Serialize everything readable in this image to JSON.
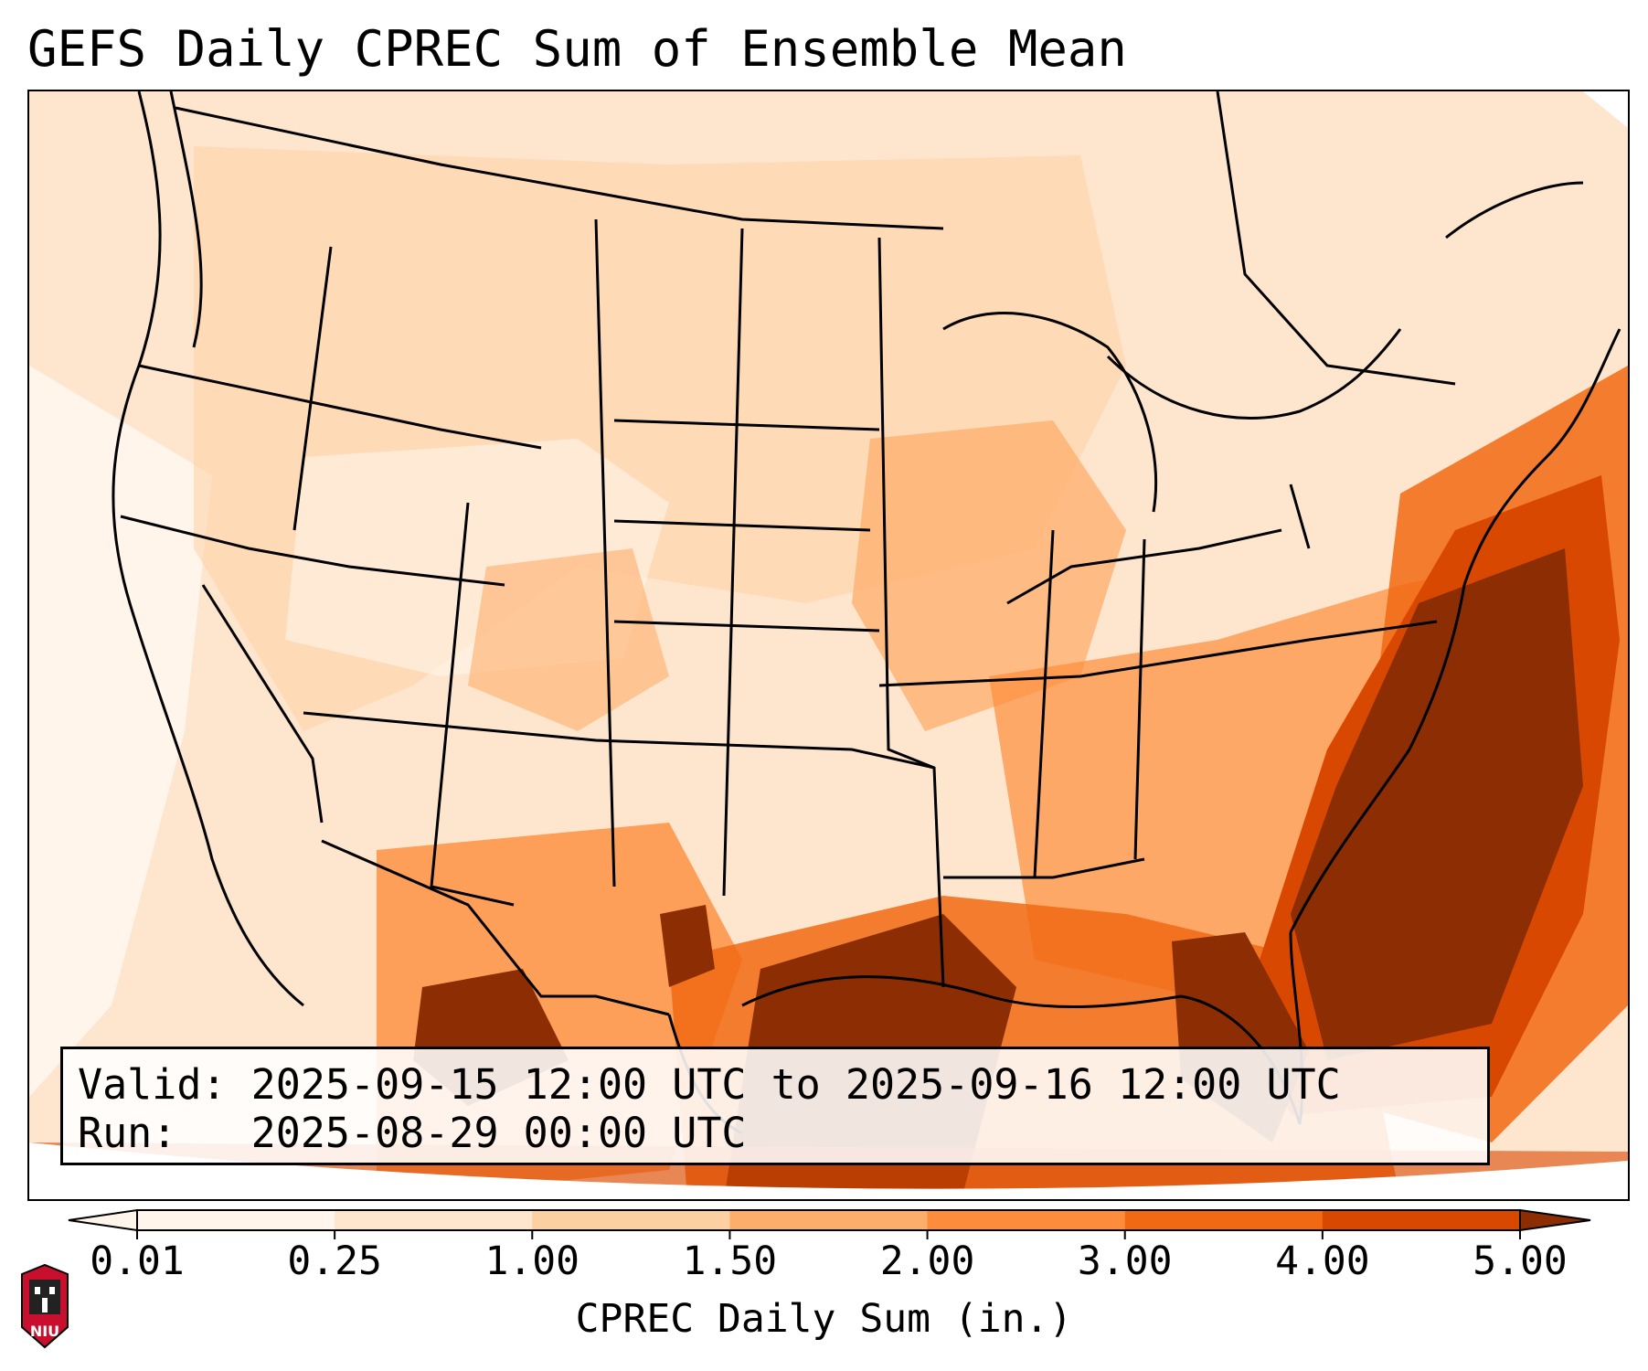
{
  "title": "GEFS Daily CPREC Sum of Ensemble Mean",
  "info": {
    "valid_label": "Valid:",
    "valid_value": "2025-09-15 12:00 UTC to 2025-09-16 12:00 UTC",
    "run_label": "Run:",
    "run_value": "2025-08-29 00:00 UTC"
  },
  "colorbar": {
    "label": "CPREC Daily Sum (in.)",
    "ticks": [
      "0.01",
      "0.25",
      "1.00",
      "1.50",
      "2.00",
      "3.00",
      "4.00",
      "5.00"
    ],
    "colors": [
      "#fff5eb",
      "#fee6ce",
      "#fdd0a2",
      "#fdae6b",
      "#fd8d3c",
      "#f16913",
      "#d94801",
      "#8c2d04"
    ]
  },
  "logo": {
    "text": "NIU",
    "icon": "niu-logo-icon"
  }
}
